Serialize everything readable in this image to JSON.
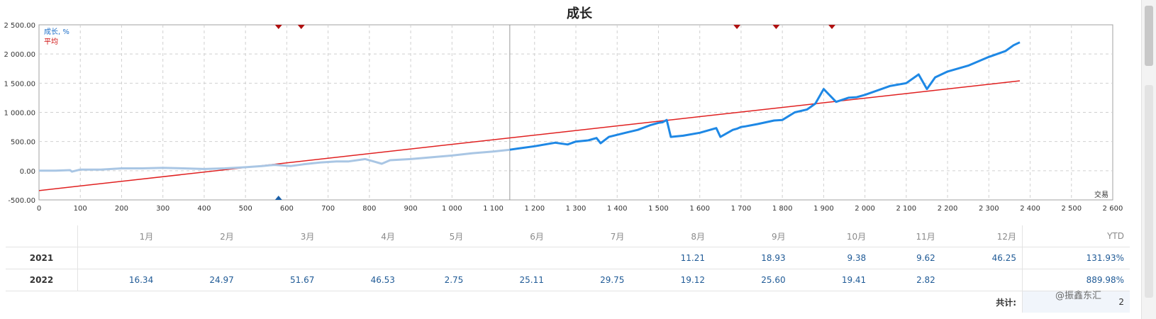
{
  "chart_data": {
    "type": "line",
    "title": "成长",
    "xlabel": "交易",
    "xlim": [
      0,
      2600
    ],
    "ylim": [
      -500,
      2500
    ],
    "x_ticks": [
      "0",
      "100",
      "200",
      "300",
      "400",
      "500",
      "600",
      "700",
      "800",
      "900",
      "1 000",
      "1 100",
      "1 200",
      "1 300",
      "1 400",
      "1 500",
      "1 600",
      "1 700",
      "1 800",
      "1 900",
      "2 000",
      "2 100",
      "2 200",
      "2 300",
      "2 400",
      "2 500",
      "2 600"
    ],
    "y_ticks": [
      "2 500.00",
      "2 000.00",
      "1 500.00",
      "1 000.00",
      "500.00",
      "0.00",
      "-500.00"
    ],
    "legend": [
      "成长, %",
      "平均"
    ],
    "grid": true,
    "series": [
      {
        "name": "成长, %",
        "color": "#1e88e5",
        "history_color": "#a9c6e4",
        "history_until": 1140,
        "x": [
          0,
          40,
          75,
          80,
          100,
          150,
          200,
          250,
          300,
          350,
          400,
          450,
          500,
          540,
          570,
          590,
          610,
          640,
          680,
          720,
          750,
          790,
          810,
          830,
          850,
          900,
          950,
          1000,
          1050,
          1100,
          1140,
          1160,
          1200,
          1250,
          1280,
          1300,
          1330,
          1350,
          1360,
          1380,
          1420,
          1450,
          1480,
          1500,
          1510,
          1520,
          1530,
          1560,
          1600,
          1640,
          1650,
          1680,
          1690,
          1700,
          1710,
          1740,
          1780,
          1800,
          1830,
          1860,
          1880,
          1900,
          1930,
          1960,
          1980,
          2000,
          2020,
          2060,
          2100,
          2130,
          2150,
          2170,
          2200,
          2250,
          2300,
          2340,
          2360,
          2375
        ],
        "y": [
          0,
          0,
          10,
          -15,
          20,
          20,
          40,
          40,
          50,
          40,
          30,
          40,
          60,
          80,
          100,
          90,
          80,
          110,
          140,
          160,
          160,
          200,
          160,
          120,
          180,
          200,
          230,
          260,
          300,
          330,
          360,
          380,
          420,
          480,
          450,
          500,
          520,
          560,
          470,
          580,
          650,
          700,
          780,
          820,
          830,
          870,
          580,
          600,
          650,
          730,
          580,
          700,
          720,
          750,
          760,
          800,
          860,
          870,
          1000,
          1050,
          1150,
          1400,
          1180,
          1250,
          1260,
          1300,
          1350,
          1450,
          1500,
          1650,
          1400,
          1600,
          1700,
          1800,
          1950,
          2050,
          2150,
          2200
        ]
      },
      {
        "name": "平均",
        "color": "#e02020",
        "x": [
          0,
          2375
        ],
        "y": [
          -340,
          1540
        ]
      }
    ],
    "markers_top_x": [
      580,
      635,
      1690,
      1785,
      1920
    ],
    "markers_bottom_x": [
      580
    ],
    "cursor_x": 1140
  },
  "table": {
    "months": [
      "1月",
      "2月",
      "3月",
      "4月",
      "5月",
      "6月",
      "7月",
      "8月",
      "9月",
      "10月",
      "11月",
      "12月"
    ],
    "ytd_label": "YTD",
    "rows": [
      {
        "year": "2021",
        "values": [
          "",
          "",
          "",
          "",
          "",
          "",
          "",
          "11.21",
          "18.93",
          "9.38",
          "9.62",
          "46.25"
        ],
        "ytd": "131.93%"
      },
      {
        "year": "2022",
        "values": [
          "16.34",
          "24.97",
          "51.67",
          "46.53",
          "2.75",
          "25.11",
          "29.75",
          "19.12",
          "25.60",
          "19.41",
          "2.82",
          ""
        ],
        "ytd": "889.98%"
      }
    ],
    "total_label": "共计:",
    "total_value": "2"
  },
  "watermark": "@振鑫东汇"
}
